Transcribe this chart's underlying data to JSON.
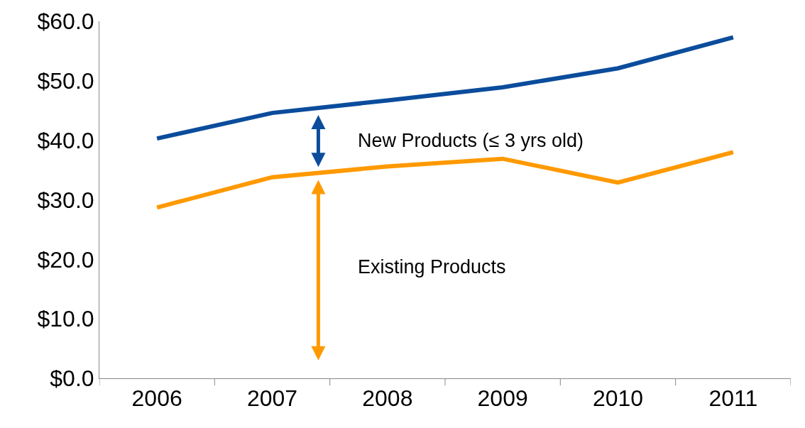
{
  "chart_data": {
    "type": "line",
    "categories": [
      "2006",
      "2007",
      "2008",
      "2009",
      "2010",
      "2011"
    ],
    "series": [
      {
        "color": "#0b4c9c",
        "values": [
          40.3,
          44.6,
          46.7,
          48.9,
          52.1,
          57.3
        ]
      },
      {
        "color": "#ff9900",
        "values": [
          28.7,
          33.8,
          35.6,
          36.9,
          32.9,
          38.0
        ]
      }
    ],
    "ylim": [
      0,
      60
    ],
    "yticks": [
      {
        "value": 0,
        "label": "$0.0"
      },
      {
        "value": 10,
        "label": "$10.0"
      },
      {
        "value": 20,
        "label": "$20.0"
      },
      {
        "value": 30,
        "label": "$30.0"
      },
      {
        "value": 40,
        "label": "$40.0"
      },
      {
        "value": 50,
        "label": "$50.0"
      },
      {
        "value": 60,
        "label": "$60.0"
      }
    ],
    "annotations": [
      "New Products (≤ 3 yrs old)",
      "Existing Products"
    ],
    "marker": "none",
    "line_style": "solid"
  }
}
